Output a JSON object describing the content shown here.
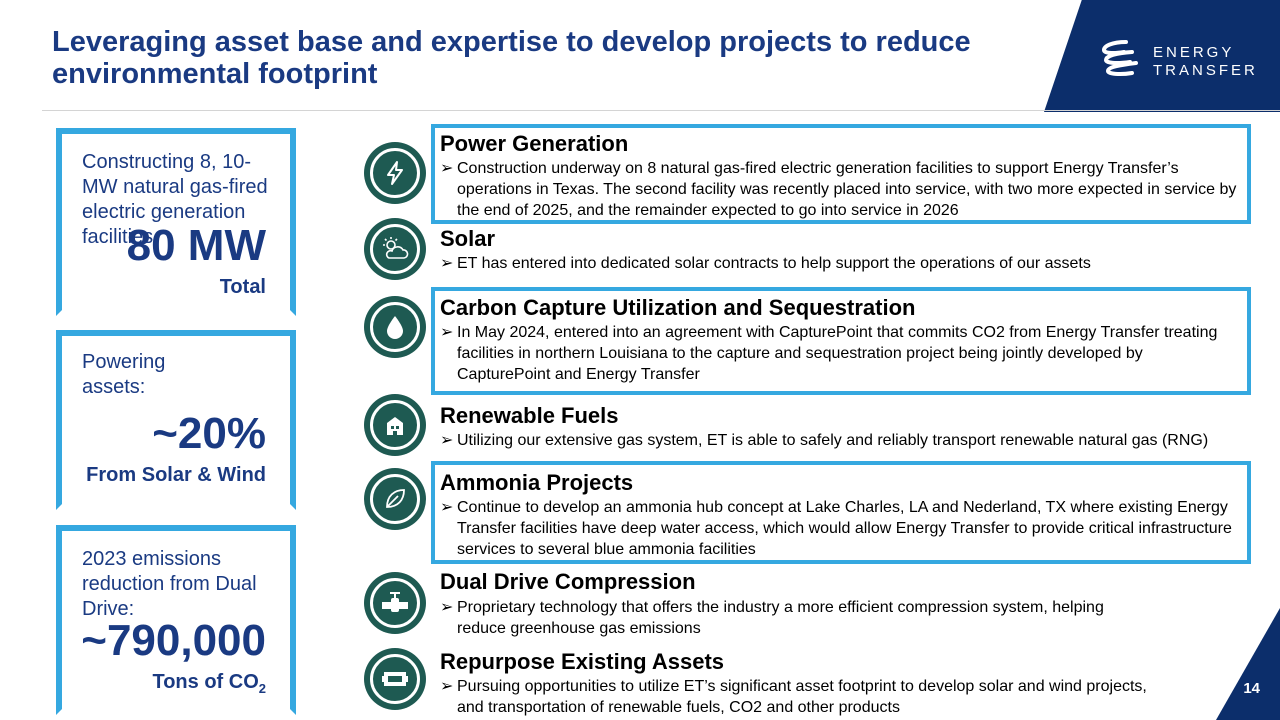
{
  "title": "Leveraging asset base and expertise to develop projects to reduce environmental footprint",
  "logo": {
    "line1": "ENERGY",
    "line2": "TRANSFER"
  },
  "stats": [
    {
      "description": "Constructing 8, 10-MW natural gas-fired electric generation facilities",
      "value": "80 MW",
      "sub": "Total"
    },
    {
      "description": "Powering assets:",
      "value": "~20%",
      "sub": "From Solar & Wind"
    },
    {
      "description": "2023 emissions reduction from Dual Drive:",
      "value": "~790,000",
      "sub": "Tons of CO",
      "sub_suffix": "2"
    }
  ],
  "items": [
    {
      "icon": "power-icon",
      "title": "Power Generation",
      "bullet": "Construction underway on 8 natural gas-fired electric generation facilities to support Energy Transfer’s operations in Texas. The second facility was recently placed into service, with two more expected in service by the end of 2025, and the remainder expected to go into service in 2026"
    },
    {
      "icon": "solar-icon",
      "title": "Solar",
      "bullet": "ET has entered into dedicated solar contracts to help support the operations of our assets"
    },
    {
      "icon": "carbon-capture-icon",
      "title": "Carbon Capture Utilization and Sequestration",
      "bullet": "In May 2024, entered into an agreement with CapturePoint that commits CO2 from Energy Transfer treating facilities in northern Louisiana to the capture and sequestration project being jointly developed by CapturePoint and Energy Transfer"
    },
    {
      "icon": "renewable-fuels-icon",
      "title": "Renewable Fuels",
      "bullet": "Utilizing our extensive gas system, ET is able to safely and reliably transport renewable natural gas (RNG)"
    },
    {
      "icon": "ammonia-leaf-icon",
      "title": "Ammonia Projects",
      "bullet": "Continue to develop an ammonia hub concept at Lake Charles, LA and Nederland, TX where existing Energy Transfer facilities have deep water access, which would allow Energy Transfer to provide critical infrastructure services to several blue ammonia facilities"
    },
    {
      "icon": "compression-valve-icon",
      "title": "Dual Drive Compression",
      "bullet": "Proprietary technology that offers the industry a more efficient compression system, helping reduce greenhouse gas emissions"
    },
    {
      "icon": "repurpose-icon",
      "title": "Repurpose Existing Assets",
      "bullet": "Pursuing opportunities to utilize ET’s significant asset footprint to develop solar and wind projects, and transportation of renewable fuels, CO2 and other products"
    }
  ],
  "page_number": "14",
  "colors": {
    "navy": "#1a3a82",
    "logo_navy": "#0c2e6b",
    "accent_blue": "#35a8e0",
    "icon_green": "#1e5a52"
  }
}
